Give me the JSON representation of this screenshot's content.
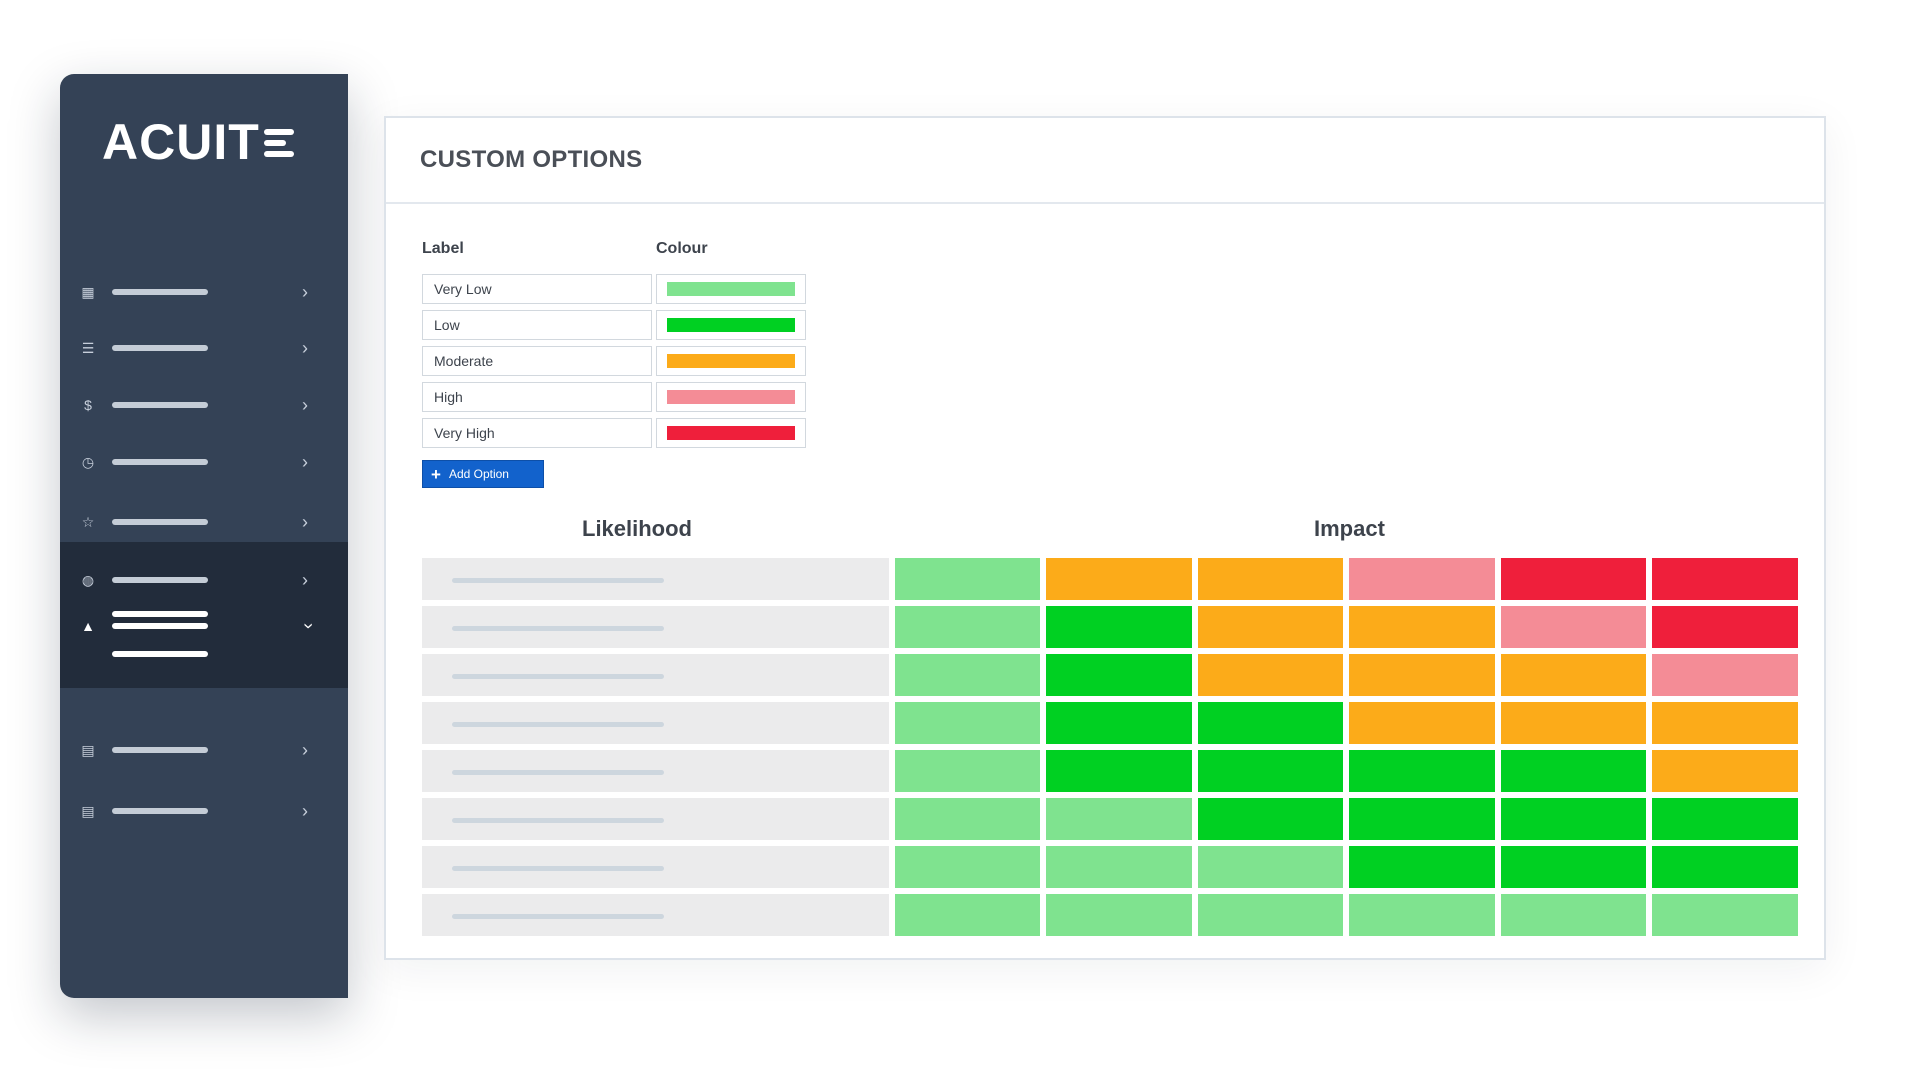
{
  "app": {
    "logo_text": "ACUIT"
  },
  "sidebar": {
    "items": [
      {
        "icon": "dashboard-icon",
        "glyph": "▦",
        "chevron": "›"
      },
      {
        "icon": "list-icon",
        "glyph": "☰",
        "chevron": "›"
      },
      {
        "icon": "dollar-icon",
        "glyph": "$",
        "chevron": "›"
      },
      {
        "icon": "clock-icon",
        "glyph": "◷",
        "chevron": "›"
      },
      {
        "icon": "star-icon",
        "glyph": "☆",
        "chevron": "›"
      },
      {
        "icon": "globe-icon",
        "glyph": "◍",
        "chevron": "›"
      },
      {
        "icon": "warning-icon",
        "glyph": "▲",
        "chevron": "›",
        "active": true
      },
      {
        "icon": "document-icon",
        "glyph": "▤",
        "chevron": "›"
      },
      {
        "icon": "file-text-icon",
        "glyph": "▤",
        "chevron": "›"
      }
    ]
  },
  "panel": {
    "title": "CUSTOM OPTIONS",
    "label_header": "Label",
    "colour_header": "Colour",
    "options": [
      {
        "label": "Very Low",
        "colour": "#7fe38f"
      },
      {
        "label": "Low",
        "colour": "#00d022"
      },
      {
        "label": "Moderate",
        "colour": "#fcab19"
      },
      {
        "label": "High",
        "colour": "#f48c96"
      },
      {
        "label": "Very High",
        "colour": "#ef1f3b"
      }
    ],
    "add_button": {
      "icon": "plus-icon",
      "glyph": "+",
      "label": "Add Option"
    },
    "likelihood_heading": "Likelihood",
    "impact_heading": "Impact"
  },
  "matrix": {
    "levels": [
      "Very Low",
      "Low",
      "Moderate",
      "High",
      "Very High"
    ],
    "rows": [
      [
        "Very Low",
        "Moderate",
        "Moderate",
        "High",
        "Very High",
        "Very High"
      ],
      [
        "Very Low",
        "Low",
        "Moderate",
        "Moderate",
        "High",
        "Very High"
      ],
      [
        "Very Low",
        "Low",
        "Moderate",
        "Moderate",
        "Moderate",
        "High"
      ],
      [
        "Very Low",
        "Low",
        "Low",
        "Moderate",
        "Moderate",
        "Moderate"
      ],
      [
        "Very Low",
        "Low",
        "Low",
        "Low",
        "Low",
        "Moderate"
      ],
      [
        "Very Low",
        "Very Low",
        "Low",
        "Low",
        "Low",
        "Low"
      ],
      [
        "Very Low",
        "Very Low",
        "Very Low",
        "Low",
        "Low",
        "Low"
      ],
      [
        "Very Low",
        "Very Low",
        "Very Low",
        "Very Low",
        "Very Low",
        "Very Low"
      ]
    ]
  },
  "colors": {
    "sidebar_bg": "#344256",
    "sidebar_active_bg": "#222c3b",
    "accent_button": "#1262cc"
  }
}
